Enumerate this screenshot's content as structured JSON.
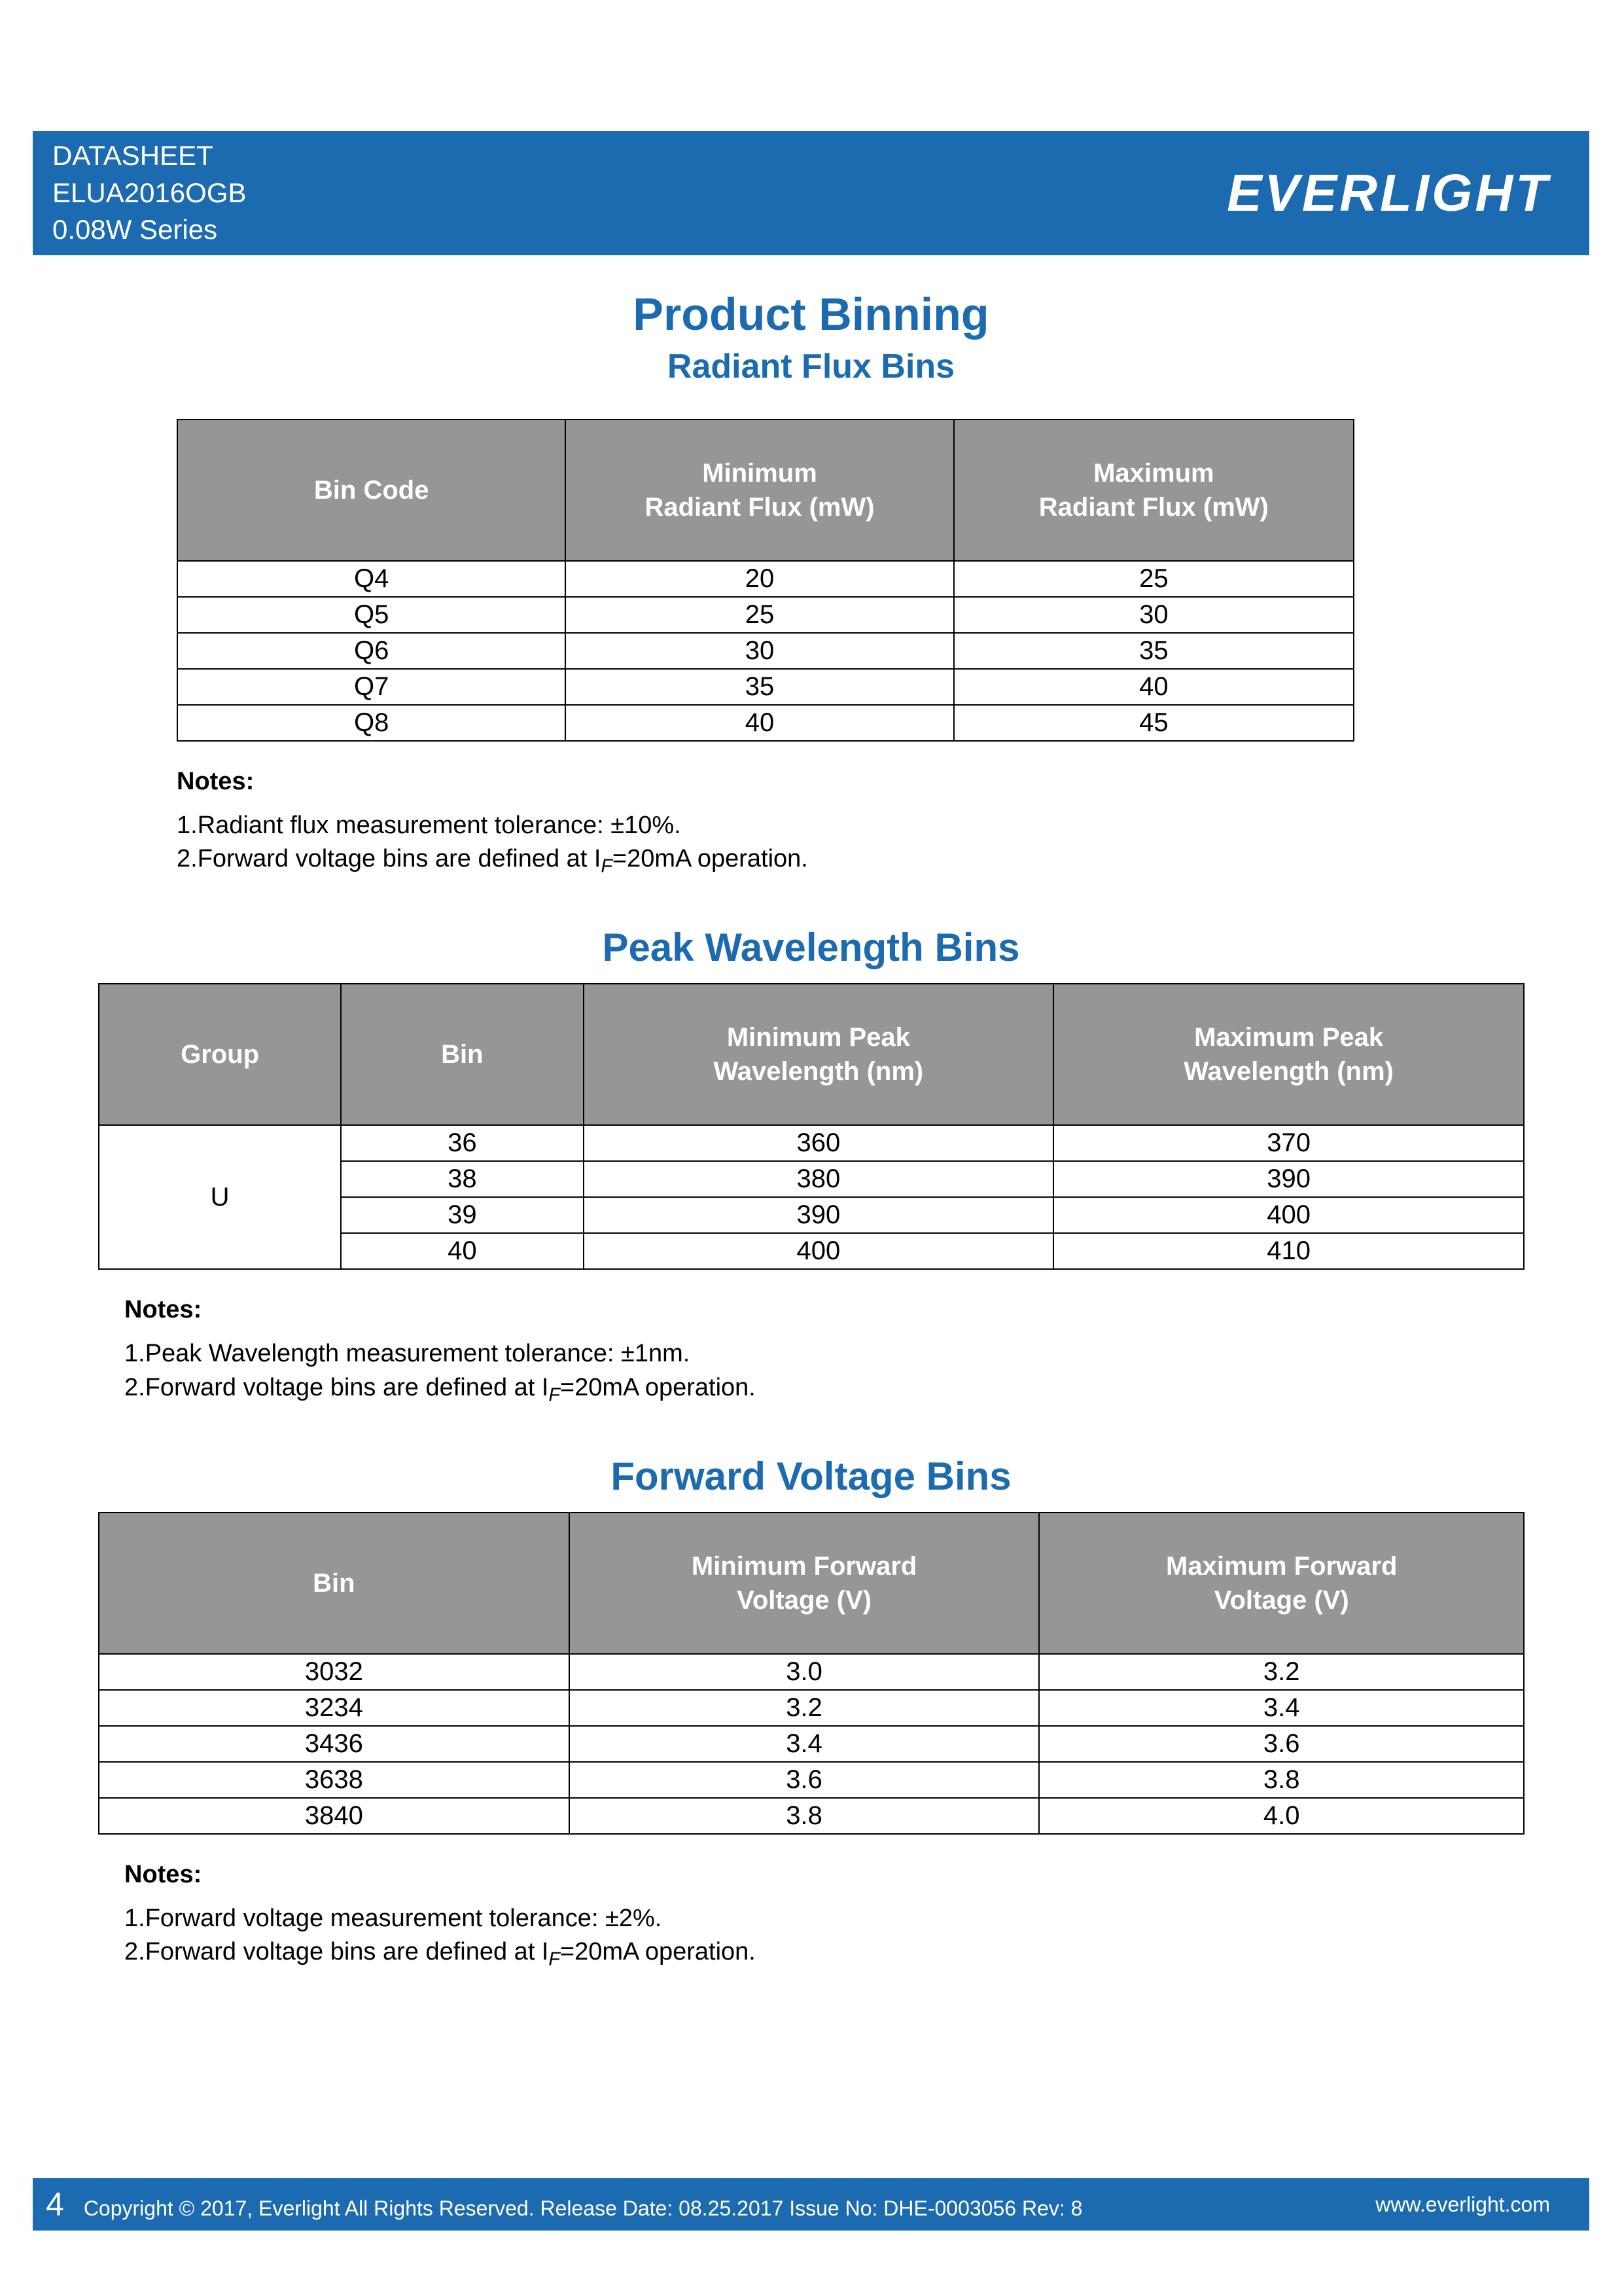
{
  "header": {
    "line1": "DATASHEET",
    "line2": "ELUA2016OGB",
    "line3": "0.08W Series",
    "logo": "EVERLIGHT",
    "bg_color": "#1c6bb0",
    "text_color": "#ffffff"
  },
  "main_title": "Product Binning",
  "section1": {
    "title": "Radiant Flux Bins",
    "columns": [
      "Bin Code",
      "Minimum\nRadiant Flux (mW)",
      "Maximum\nRadiant Flux (mW)"
    ],
    "rows": [
      [
        "Q4",
        "20",
        "25"
      ],
      [
        "Q5",
        "25",
        "30"
      ],
      [
        "Q6",
        "30",
        "35"
      ],
      [
        "Q7",
        "35",
        "40"
      ],
      [
        "Q8",
        "40",
        "45"
      ]
    ],
    "notes_heading": "Notes:",
    "notes": [
      "1.Radiant flux measurement tolerance: ±10%.",
      "2.Forward voltage bins are defined at I_F=20mA operation."
    ]
  },
  "section2": {
    "title": "Peak Wavelength Bins",
    "columns": [
      "Group",
      "Bin",
      "Minimum Peak\nWavelength (nm)",
      "Maximum Peak\nWavelength (nm)"
    ],
    "group": "U",
    "rows": [
      [
        "36",
        "360",
        "370"
      ],
      [
        "38",
        "380",
        "390"
      ],
      [
        "39",
        "390",
        "400"
      ],
      [
        "40",
        "400",
        "410"
      ]
    ],
    "notes_heading": "Notes:",
    "notes": [
      "1.Peak Wavelength measurement tolerance: ±1nm.",
      "2.Forward voltage bins are defined at I_F=20mA operation."
    ]
  },
  "section3": {
    "title": "Forward Voltage Bins",
    "columns": [
      "Bin",
      "Minimum Forward\nVoltage (V)",
      "Maximum Forward\nVoltage (V)"
    ],
    "rows": [
      [
        "3032",
        "3.0",
        "3.2"
      ],
      [
        "3234",
        "3.2",
        "3.4"
      ],
      [
        "3436",
        "3.4",
        "3.6"
      ],
      [
        "3638",
        "3.6",
        "3.8"
      ],
      [
        "3840",
        "3.8",
        "4.0"
      ]
    ],
    "notes_heading": "Notes:",
    "notes": [
      "1.Forward voltage measurement tolerance: ±2%.",
      "2.Forward voltage bins are defined at I_F=20mA operation."
    ]
  },
  "footer": {
    "page_number": "4",
    "copyright": "Copyright © 2017, Everlight All Rights Reserved. Release Date: 08.25.2017 Issue No: DHE-0003056 Rev: 8",
    "url": "www.everlight.com",
    "bg_color": "#1c6bb0",
    "text_color": "#ffffff"
  },
  "styling": {
    "title_color": "#1c6bb0",
    "table_header_bg": "#969696",
    "table_header_text": "#ffffff",
    "table_border_color": "#000000",
    "body_text_color": "#000000",
    "page_bg": "#ffffff",
    "title_fontsize_pt": 52,
    "section_fontsize_pt": 45,
    "body_fontsize_pt": 30
  }
}
